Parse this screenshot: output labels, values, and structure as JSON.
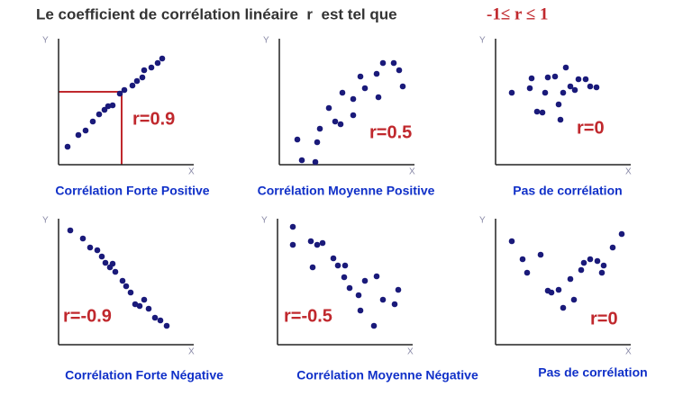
{
  "title": "Le coefficient de corrélation linéaire  r  est tel que",
  "range": "-1≤ r ≤ 1",
  "panels": [
    {
      "y_label": "Y",
      "x_label": "X",
      "r_label": "r=0.9",
      "caption": "Corrélation Forte Positive"
    },
    {
      "y_label": "Y",
      "x_label": "X",
      "r_label": "r=0.5",
      "caption": "Corrélation Moyenne Positive"
    },
    {
      "y_label": "Y",
      "x_label": "X",
      "r_label": "r=0",
      "caption": "Pas de corrélation"
    },
    {
      "y_label": "Y",
      "x_label": "X",
      "r_label": "r=-0.9",
      "caption": "Corrélation Forte Négative"
    },
    {
      "y_label": "Y",
      "x_label": "X",
      "r_label": "r=-0.5",
      "caption": "Corrélation Moyenne Négative"
    },
    {
      "y_label": "Y",
      "x_label": "X",
      "r_label": "r=0",
      "caption": "Pas de corrélation"
    }
  ]
}
